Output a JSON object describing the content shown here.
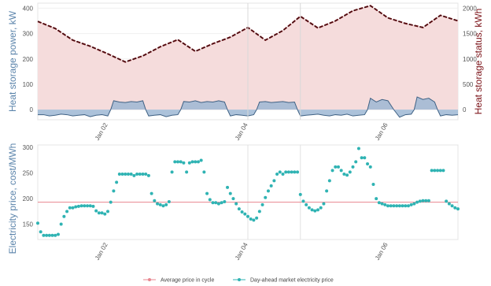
{
  "chart_data": [
    {
      "type": "line",
      "ylabel_left": "Heat storage power, kW",
      "ylabel_right": "Heat storage status, kWh",
      "ylim_left": [
        -40,
        420
      ],
      "ylim_right": [
        -200,
        2100
      ],
      "yticks_left": [
        0,
        100,
        200,
        300,
        400
      ],
      "yticks_right": [
        0,
        500,
        1000,
        1500,
        2000
      ],
      "x_ticks": [
        {
          "label": "Jan 02",
          "x": 24
        },
        {
          "label": "Jan 04",
          "x": 72
        },
        {
          "label": "Jan 06",
          "x": 120
        }
      ],
      "xlim": [
        0,
        144
      ],
      "vlines": [
        72,
        90
      ],
      "colors": {
        "power": "#7195b9",
        "status_line": "#7a1016",
        "status_fill": "#f5dcdc"
      },
      "status_series": {
        "name": "Heat storage status",
        "x": [
          0,
          6,
          12,
          18,
          24,
          30,
          36,
          42,
          48,
          54,
          60,
          66,
          72,
          78,
          84,
          90,
          96,
          102,
          108,
          114,
          120,
          126,
          132,
          138,
          144
        ],
        "values": [
          1740,
          1600,
          1370,
          1250,
          1100,
          940,
          1060,
          1240,
          1380,
          1150,
          1300,
          1430,
          1620,
          1370,
          1560,
          1840,
          1610,
          1750,
          1950,
          2050,
          1810,
          1700,
          1620,
          1860,
          1750
        ]
      },
      "power_series": {
        "name": "Heat storage power",
        "x": [
          0,
          2,
          4,
          6,
          8,
          10,
          12,
          14,
          16,
          18,
          20,
          22,
          24,
          25,
          26,
          28,
          30,
          32,
          34,
          36,
          37,
          38,
          40,
          42,
          44,
          46,
          48,
          49,
          50,
          52,
          54,
          56,
          58,
          60,
          62,
          64,
          65,
          66,
          68,
          70,
          72,
          74,
          75,
          76,
          78,
          80,
          82,
          84,
          86,
          88,
          89,
          90,
          92,
          94,
          96,
          98,
          100,
          102,
          104,
          106,
          108,
          110,
          112,
          113,
          114,
          116,
          118,
          120,
          122,
          124,
          126,
          128,
          129,
          130,
          132,
          134,
          136,
          137,
          138,
          140,
          142,
          144
        ],
        "values": [
          -20,
          -20,
          -25,
          -22,
          -18,
          -20,
          -25,
          -22,
          -20,
          -28,
          -22,
          -20,
          -25,
          0,
          35,
          30,
          28,
          32,
          30,
          35,
          0,
          -25,
          -22,
          -20,
          -28,
          -22,
          -20,
          0,
          32,
          30,
          35,
          28,
          32,
          30,
          35,
          30,
          0,
          -25,
          -20,
          -22,
          -25,
          -20,
          0,
          30,
          32,
          28,
          30,
          32,
          28,
          30,
          0,
          -25,
          -22,
          -20,
          -18,
          -22,
          -25,
          -20,
          -22,
          -18,
          -25,
          -22,
          -20,
          0,
          45,
          30,
          40,
          35,
          0,
          -30,
          -20,
          -18,
          0,
          50,
          40,
          45,
          30,
          0,
          -25,
          -20,
          -22,
          -20
        ]
      }
    },
    {
      "type": "scatter",
      "ylabel": "Electricity price, cost/MWh",
      "ylim": [
        120,
        305
      ],
      "yticks": [
        150,
        200,
        250,
        300
      ],
      "x_ticks": [
        {
          "label": "Jan 02",
          "x": 24
        },
        {
          "label": "Jan 04",
          "x": 72
        },
        {
          "label": "Jan 06",
          "x": 120
        }
      ],
      "xlim": [
        0,
        144
      ],
      "vlines": [
        72,
        90
      ],
      "colors": {
        "average": "#e8868f",
        "dayahead": "#2fb3b3"
      },
      "average_price": 193,
      "legend": {
        "placement": "bottom-center",
        "entries": [
          "Average price in cycle",
          "Day-ahead market electricity price"
        ]
      },
      "dayahead_price": {
        "name": "Day-ahead market electricity price",
        "x": [
          0,
          1,
          2,
          3,
          4,
          5,
          6,
          7,
          8,
          9,
          10,
          11,
          12,
          13,
          14,
          15,
          16,
          17,
          18,
          19,
          20,
          21,
          22,
          23,
          24,
          25,
          26,
          27,
          28,
          29,
          30,
          31,
          32,
          33,
          34,
          35,
          36,
          37,
          38,
          39,
          40,
          41,
          42,
          43,
          44,
          45,
          46,
          47,
          48,
          49,
          50,
          51,
          52,
          53,
          54,
          55,
          56,
          57,
          58,
          59,
          60,
          61,
          62,
          63,
          64,
          65,
          66,
          67,
          68,
          69,
          70,
          71,
          72,
          73,
          74,
          75,
          76,
          77,
          78,
          79,
          80,
          81,
          82,
          83,
          84,
          85,
          86,
          87,
          88,
          89,
          90,
          91,
          92,
          93,
          94,
          95,
          96,
          97,
          98,
          99,
          100,
          101,
          102,
          103,
          104,
          105,
          106,
          107,
          108,
          109,
          110,
          111,
          112,
          113,
          114,
          115,
          116,
          117,
          118,
          119,
          120,
          121,
          122,
          123,
          124,
          125,
          126,
          127,
          128,
          129,
          130,
          131,
          132,
          133,
          134,
          135,
          136,
          137,
          138,
          139,
          140,
          141,
          142,
          143,
          144
        ],
        "values": [
          152,
          135,
          128,
          128,
          128,
          128,
          128,
          130,
          150,
          165,
          175,
          182,
          182,
          184,
          185,
          186,
          186,
          186,
          186,
          185,
          176,
          172,
          172,
          170,
          175,
          193,
          215,
          232,
          248,
          248,
          248,
          248,
          248,
          245,
          248,
          248,
          248,
          248,
          245,
          210,
          196,
          190,
          188,
          186,
          188,
          194,
          252,
          272,
          272,
          272,
          270,
          252,
          270,
          272,
          272,
          272,
          275,
          252,
          210,
          198,
          192,
          192,
          190,
          192,
          194,
          222,
          210,
          200,
          190,
          180,
          174,
          170,
          165,
          160,
          158,
          162,
          175,
          188,
          202,
          215,
          225,
          235,
          248,
          252,
          248,
          252,
          252,
          252,
          252,
          252,
          208,
          195,
          188,
          182,
          178,
          176,
          178,
          182,
          190,
          215,
          235,
          255,
          262,
          262,
          255,
          248,
          246,
          252,
          262,
          272,
          298,
          280,
          280,
          268,
          262,
          228,
          200,
          192,
          190,
          188,
          186,
          186,
          186,
          186,
          186,
          186,
          186,
          186,
          188,
          190,
          193,
          195,
          196,
          196,
          196,
          255,
          255,
          255,
          255,
          255,
          195,
          190,
          186,
          182,
          180
        ]
      }
    }
  ]
}
